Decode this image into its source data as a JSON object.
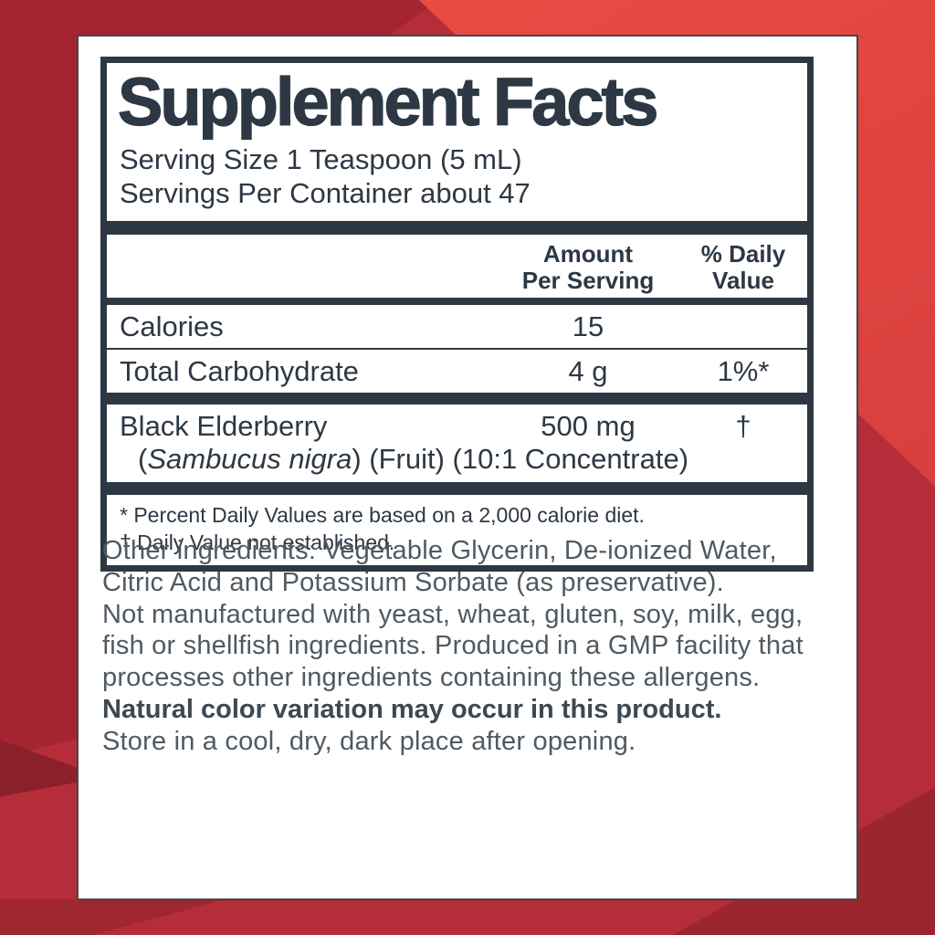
{
  "facts": {
    "title": "Supplement Facts",
    "serving_size": "Serving Size 1 Teaspoon (5 mL)",
    "servings_per_container": "Servings Per Container about 47",
    "col_amount_header": "Amount\nPer Serving",
    "col_dv_header": "% Daily\nValue",
    "rows": [
      {
        "name": "Calories",
        "amount": "15",
        "dv": ""
      },
      {
        "name": "Total Carbohydrate",
        "amount": "4 g",
        "dv": "1%*"
      }
    ],
    "elderberry": {
      "name": "Black Elderberry",
      "amount": "500 mg",
      "dv": "†",
      "detail_open": "(",
      "detail_italic": "Sambucus nigra",
      "detail_close": ") (Fruit) (10:1 Concentrate)"
    },
    "footnotes": [
      "* Percent Daily Values are based on a 2,000 calorie diet.",
      "† Daily Value not established."
    ]
  },
  "body": {
    "other_ingredients": "Other ingredients: Vegetable Glycerin, De-ionized Water, Citric Acid and Potassium Sorbate (as preservative).",
    "allergen_statement": "Not manufactured with yeast, wheat, gluten, soy, milk, egg, fish or shellfish ingredients. Produced in a GMP facility that processes other ingredients containing these allergens.",
    "color_note": "Natural color variation may occur in this product.",
    "storage": "Store in a cool, dry, dark place after opening."
  },
  "colors": {
    "label_ink": "#2d3844",
    "body_ink": "#4f5a62",
    "red_base": "#b52d38",
    "red_dark": "#a52431",
    "red_bright": "#ee5045",
    "red_maroon": "#8a2029",
    "red_deep": "#9c2630"
  }
}
